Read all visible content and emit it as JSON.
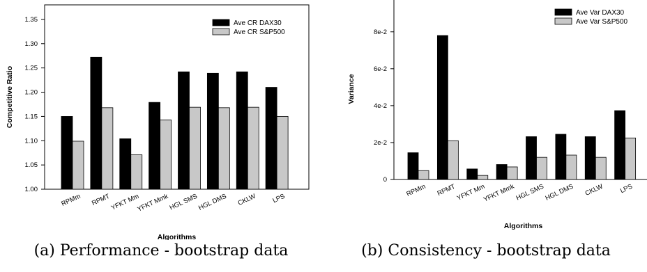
{
  "chart_data": [
    {
      "type": "bar",
      "categories": [
        "RPMm",
        "RPMT",
        "YFKT Mm",
        "YFKT Mmk",
        "HGL SMS",
        "HGL DMS",
        "CKLW",
        "LPS"
      ],
      "series": [
        {
          "name": "Ave CR DAX30",
          "values": [
            1.15,
            1.272,
            1.104,
            1.179,
            1.242,
            1.239,
            1.242,
            1.21
          ],
          "color": "#000000"
        },
        {
          "name": "Ave CR S&P500",
          "values": [
            1.099,
            1.168,
            1.071,
            1.143,
            1.169,
            1.168,
            1.169,
            1.15
          ],
          "color": "#c8c8c8"
        }
      ],
      "ylim": [
        1.0,
        1.38
      ],
      "yticks": [
        "1.00",
        "1.05",
        "1.10",
        "1.15",
        "1.20",
        "1.25",
        "1.30",
        "1.35"
      ],
      "xlabel": "Algorithms",
      "ylabel": "Competitive Ratio",
      "legend": "top-right",
      "caption": "(a) Performance - bootstrap data"
    },
    {
      "type": "bar",
      "categories": [
        "RPMm",
        "RPMT",
        "YFKT Mm",
        "YFKT Mmk",
        "HGL SMS",
        "HGL DMS",
        "CKLW",
        "LPS"
      ],
      "series": [
        {
          "name": "Ave Var DAX30",
          "values": [
            0.0145,
            0.078,
            0.0057,
            0.0081,
            0.0232,
            0.0245,
            0.0232,
            0.0373
          ],
          "color": "#000000"
        },
        {
          "name": "Ave Var S&P500",
          "values": [
            0.0048,
            0.021,
            0.0022,
            0.0068,
            0.012,
            0.0132,
            0.012,
            0.0225
          ],
          "color": "#c8c8c8"
        }
      ],
      "ylim": [
        0,
        0.098
      ],
      "yticks": [
        "0",
        "2e-2",
        "4e-2",
        "6e-2",
        "8e-2"
      ],
      "xlabel": "Algorithms",
      "ylabel": "Variance",
      "legend": "top-right",
      "caption": "(b) Consistency - bootstrap data"
    }
  ]
}
